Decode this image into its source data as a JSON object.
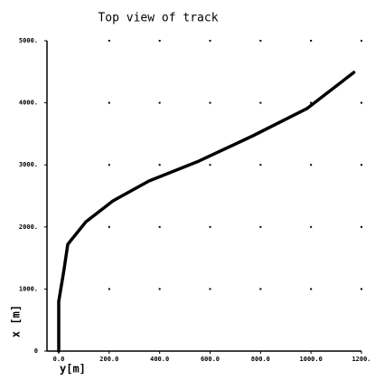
{
  "chart_data": {
    "type": "line",
    "title": "Top view of track",
    "x_label": "y[m]",
    "y_label": "x [m]",
    "x": [
      0,
      0,
      20,
      36,
      107,
      215,
      358,
      555,
      770,
      985,
      1170
    ],
    "series": [
      {
        "name": "track",
        "color": "#000000",
        "values": [
          0,
          800,
          1290,
          1720,
          2080,
          2420,
          2740,
          3060,
          3470,
          3910,
          4490
        ]
      }
    ],
    "xlim": [
      0,
      1200
    ],
    "xticks": [
      {
        "value": 0,
        "label": "0.0"
      },
      {
        "value": 200,
        "label": "200.0"
      },
      {
        "value": 400,
        "label": "400.0"
      },
      {
        "value": 600,
        "label": "600.0"
      },
      {
        "value": 800,
        "label": "800.0"
      },
      {
        "value": 1000,
        "label": "1000.0"
      },
      {
        "value": 1200,
        "label": "1200."
      }
    ],
    "ylim": [
      0,
      5000
    ],
    "yticks": [
      0,
      {
        "value": 1000,
        "label": "1000."
      },
      {
        "value": 2000,
        "label": "2000."
      },
      {
        "value": 3000,
        "label": "3000."
      },
      {
        "value": 4000,
        "label": "4000."
      },
      {
        "value": 5000,
        "label": "5000."
      }
    ],
    "grid": true
  }
}
